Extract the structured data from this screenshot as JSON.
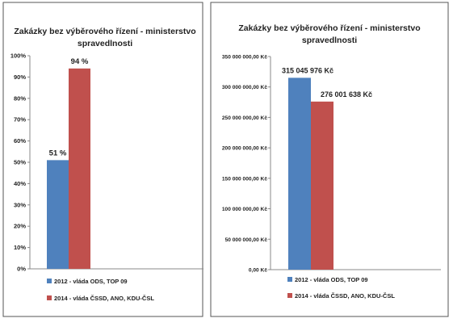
{
  "chart_data": [
    {
      "type": "bar",
      "title": "Zakázky bez výběrového řízení - ministerstvo spravedlnosti",
      "title_lines": [
        "Zakázky bez výběrového řízení - ministerstvo",
        "spravedlnosti"
      ],
      "categories": [
        ""
      ],
      "ylim": [
        0,
        100
      ],
      "yticks": [
        0,
        10,
        20,
        30,
        40,
        50,
        60,
        70,
        80,
        90,
        100
      ],
      "ytick_labels": [
        "0%",
        "10%",
        "20%",
        "30%",
        "40%",
        "50%",
        "60%",
        "70%",
        "80%",
        "90%",
        "100%"
      ],
      "grid": false,
      "legend_position": "bottom",
      "series": [
        {
          "name": "2012 -  vláda ODS, TOP 09",
          "values": [
            51
          ],
          "labels": [
            "51 %"
          ],
          "color": "#4f81bd"
        },
        {
          "name": "2014 - vláda ČSSD, ANO, KDU-ČSL",
          "values": [
            94
          ],
          "labels": [
            "94 %"
          ],
          "color": "#c0504d"
        }
      ]
    },
    {
      "type": "bar",
      "title": "Zakázky bez výběrového řízení - ministerstvo spravedlnosti",
      "title_lines": [
        "Zakázky bez výběrového řízení - ministerstvo",
        "spravedlnosti"
      ],
      "categories": [
        ""
      ],
      "ylim": [
        0,
        350000000
      ],
      "yticks": [
        0,
        50000000,
        100000000,
        150000000,
        200000000,
        250000000,
        300000000,
        350000000
      ],
      "ytick_labels": [
        "0,00 Kč",
        "50 000 000,00 Kč",
        "100 000 000,00 Kč",
        "150 000 000,00 Kč",
        "200 000 000,00 Kč",
        "250 000 000,00 Kč",
        "300 000 000,00 Kč",
        "350 000 000,00 Kč"
      ],
      "grid": false,
      "legend_position": "bottom",
      "series": [
        {
          "name": "2012 -  vláda ODS, TOP 09",
          "values": [
            315045976
          ],
          "labels": [
            "315 045 976 Kč"
          ],
          "color": "#4f81bd"
        },
        {
          "name": "2014 - vláda ČSSD, ANO, KDU-ČSL",
          "values": [
            276001638
          ],
          "labels": [
            "276 001 638 Kč"
          ],
          "color": "#c0504d"
        }
      ]
    }
  ]
}
